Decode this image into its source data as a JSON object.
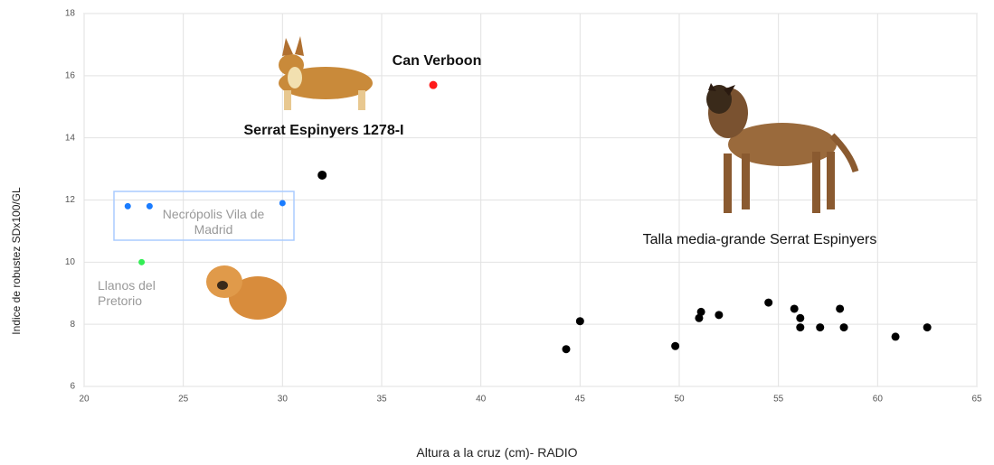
{
  "chart_data": {
    "type": "scatter",
    "x_label": "Altura a la cruz (cm)- RADIO",
    "y_label": "Indice de robustez SDx100/GL",
    "xlim": [
      20,
      65
    ],
    "xticks": [
      20,
      25,
      30,
      35,
      40,
      45,
      50,
      55,
      60,
      65
    ],
    "ylim": [
      6,
      18
    ],
    "yticks": [
      6,
      8,
      10,
      12,
      14,
      16,
      18
    ],
    "grid": true,
    "series": [
      {
        "name": "Can Verboon",
        "color": "#ff1a1a",
        "x": [
          37.6
        ],
        "values": [
          15.7
        ]
      },
      {
        "name": "Serrat Espinyers 1278-I",
        "color": "#000000",
        "x": [
          32.0
        ],
        "values": [
          12.8
        ]
      },
      {
        "name": "Necrópolis Vila de Madrid",
        "color": "#1a7cff",
        "x": [
          22.2,
          23.3,
          30.0
        ],
        "values": [
          11.8,
          11.8,
          11.9
        ]
      },
      {
        "name": "Llanos del Pretorio",
        "color": "#33ee55",
        "x": [
          22.9
        ],
        "values": [
          10.0
        ]
      },
      {
        "name": "Talla media-grande Serrat Espinyers",
        "color": "#000000",
        "x": [
          44.3,
          45.0,
          49.8,
          51.0,
          51.1,
          52.0,
          54.5,
          55.8,
          56.1,
          56.1,
          57.1,
          58.1,
          58.3,
          60.9,
          62.5
        ],
        "values": [
          7.2,
          8.1,
          7.3,
          8.2,
          8.4,
          8.3,
          8.7,
          8.5,
          8.2,
          7.9,
          7.9,
          8.5,
          7.9,
          7.6,
          7.9
        ]
      }
    ]
  }
}
